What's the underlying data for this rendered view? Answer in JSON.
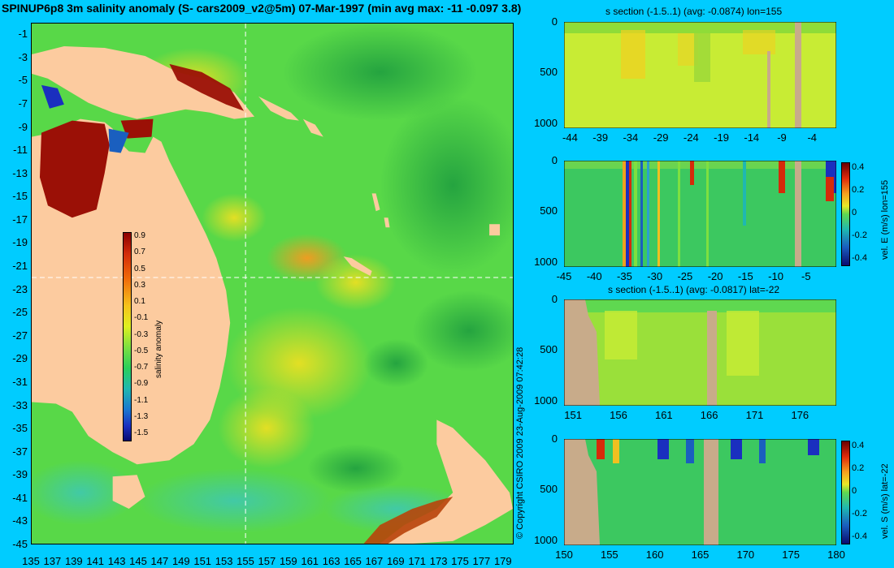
{
  "main_title": "SPINUP6p8 3m salinity anomaly (S- cars2009_v2@5m) 07-Mar-1997 (min avg max: -11 -0.097 3.8)",
  "copyright": "© Copyright CSIRO 2009   23-Aug-2009 07:42:28",
  "colors": {
    "background": "#00ccff",
    "land": "#fccb9f",
    "section_land": "#c8ab8a",
    "ocean_base": "#58d848"
  },
  "chart_data": [
    {
      "type": "heatmap",
      "panel": "map",
      "title": "",
      "xlabel": "",
      "ylabel": "",
      "x_ticks": [
        "135",
        "137",
        "139",
        "141",
        "143",
        "145",
        "147",
        "149",
        "151",
        "153",
        "155",
        "157",
        "159",
        "161",
        "163",
        "165",
        "167",
        "169",
        "171",
        "173",
        "175",
        "177",
        "179"
      ],
      "y_ticks": [
        "-1",
        "-3",
        "-5",
        "-7",
        "-9",
        "-11",
        "-13",
        "-15",
        "-17",
        "-19",
        "-21",
        "-23",
        "-25",
        "-27",
        "-29",
        "-31",
        "-33",
        "-35",
        "-37",
        "-39",
        "-41",
        "-43",
        "-45"
      ],
      "xlim": [
        135,
        180
      ],
      "ylim": [
        -45,
        0
      ],
      "crosshair": {
        "lon": 155,
        "lat": -22
      },
      "colorbar": {
        "label": "salinity anomaly",
        "ticks": [
          "0.9",
          "0.7",
          "0.5",
          "0.3",
          "0.1",
          "-0.1",
          "-0.3",
          "-0.5",
          "-0.7",
          "-0.9",
          "-1.1",
          "-1.3",
          "-1.5"
        ],
        "range": [
          -1.5,
          0.9
        ]
      }
    },
    {
      "type": "heatmap",
      "panel": "s-section-lon",
      "title": "s section (-1.5..1) (avg: -0.0874) lon=155",
      "x_ticks": [
        "-44",
        "-39",
        "-34",
        "-29",
        "-24",
        "-19",
        "-14",
        "-9",
        "-4"
      ],
      "y_ticks": [
        "0",
        "500",
        "1000"
      ],
      "xlim": [
        -45,
        0
      ],
      "ylim": [
        1050,
        0
      ]
    },
    {
      "type": "heatmap",
      "panel": "vel-e-section",
      "title": "",
      "x_ticks": [
        "-45",
        "-40",
        "-35",
        "-30",
        "-25",
        "-20",
        "-15",
        "-10",
        "-5"
      ],
      "y_ticks": [
        "0",
        "500",
        "1000"
      ],
      "xlim": [
        -45,
        0
      ],
      "ylim": [
        1050,
        0
      ],
      "colorbar": {
        "label": "vel. E (m/s) lon=155",
        "ticks": [
          "0.4",
          "0.2",
          "0",
          "-0.2",
          "-0.4"
        ],
        "range": [
          -0.45,
          0.45
        ]
      }
    },
    {
      "type": "heatmap",
      "panel": "s-section-lat",
      "title": "s section (-1.5..1) (avg: -0.0817) lat=-22",
      "x_ticks": [
        "151",
        "156",
        "161",
        "166",
        "171",
        "176"
      ],
      "y_ticks": [
        "0",
        "500",
        "1000"
      ],
      "xlim": [
        150,
        180
      ],
      "ylim": [
        1050,
        0
      ]
    },
    {
      "type": "heatmap",
      "panel": "vel-s-section",
      "title": "",
      "x_ticks": [
        "150",
        "155",
        "160",
        "165",
        "170",
        "175",
        "180"
      ],
      "y_ticks": [
        "0",
        "500",
        "1000"
      ],
      "xlim": [
        150,
        180
      ],
      "ylim": [
        1050,
        0
      ],
      "colorbar": {
        "label": "vel. S (m/s) lat=-22",
        "ticks": [
          "0.4",
          "0.2",
          "0",
          "-0.2",
          "-0.4"
        ],
        "range": [
          -0.45,
          0.45
        ]
      }
    }
  ]
}
